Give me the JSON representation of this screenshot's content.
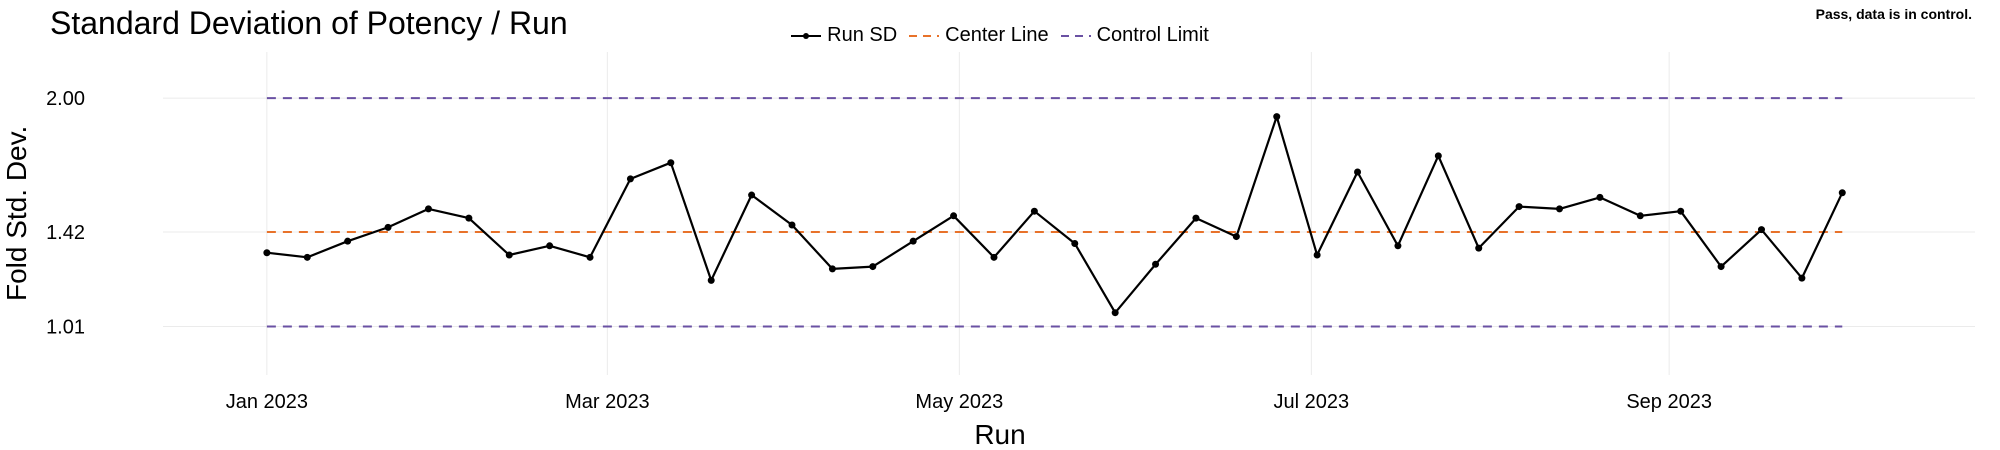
{
  "title": "Standard Deviation of Potency / Run",
  "status_message": "Pass, data is in control.",
  "chart_data": {
    "type": "line",
    "title": "Standard Deviation of Potency / Run",
    "xlabel": "Run",
    "ylabel": "Fold Std. Dev.",
    "x_ticks": [
      {
        "label": "Jan 2023",
        "date": "2023-01-01"
      },
      {
        "label": "Mar 2023",
        "date": "2023-03-01"
      },
      {
        "label": "May 2023",
        "date": "2023-05-01"
      },
      {
        "label": "Jul 2023",
        "date": "2023-07-01"
      },
      {
        "label": "Sep 2023",
        "date": "2023-09-01"
      }
    ],
    "xlim": [
      "2022-12-14",
      "2023-10-24"
    ],
    "y_ticks": [
      {
        "label": "1.01",
        "value": 1.01
      },
      {
        "label": "1.42",
        "value": 1.42
      },
      {
        "label": "2.00",
        "value": 2.0
      }
    ],
    "ylim": [
      0.8,
      2.2
    ],
    "grid": true,
    "legend_position": "top-center",
    "series": [
      {
        "name": "Run SD",
        "color": "#000000",
        "line_style": "solid",
        "markers": true,
        "points": [
          {
            "x": "2023-01-01",
            "y": 1.33
          },
          {
            "x": "2023-01-08",
            "y": 1.31
          },
          {
            "x": "2023-01-15",
            "y": 1.38
          },
          {
            "x": "2023-01-22",
            "y": 1.44
          },
          {
            "x": "2023-01-29",
            "y": 1.52
          },
          {
            "x": "2023-02-05",
            "y": 1.48
          },
          {
            "x": "2023-02-12",
            "y": 1.32
          },
          {
            "x": "2023-02-19",
            "y": 1.36
          },
          {
            "x": "2023-02-26",
            "y": 1.31
          },
          {
            "x": "2023-03-05",
            "y": 1.65
          },
          {
            "x": "2023-03-12",
            "y": 1.72
          },
          {
            "x": "2023-03-19",
            "y": 1.21
          },
          {
            "x": "2023-03-26",
            "y": 1.58
          },
          {
            "x": "2023-04-02",
            "y": 1.45
          },
          {
            "x": "2023-04-09",
            "y": 1.26
          },
          {
            "x": "2023-04-16",
            "y": 1.27
          },
          {
            "x": "2023-04-23",
            "y": 1.38
          },
          {
            "x": "2023-04-30",
            "y": 1.49
          },
          {
            "x": "2023-05-07",
            "y": 1.31
          },
          {
            "x": "2023-05-14",
            "y": 1.51
          },
          {
            "x": "2023-05-21",
            "y": 1.37
          },
          {
            "x": "2023-05-28",
            "y": 1.07
          },
          {
            "x": "2023-06-04",
            "y": 1.28
          },
          {
            "x": "2023-06-11",
            "y": 1.48
          },
          {
            "x": "2023-06-18",
            "y": 1.4
          },
          {
            "x": "2023-06-25",
            "y": 1.92
          },
          {
            "x": "2023-07-02",
            "y": 1.32
          },
          {
            "x": "2023-07-09",
            "y": 1.68
          },
          {
            "x": "2023-07-16",
            "y": 1.36
          },
          {
            "x": "2023-07-23",
            "y": 1.75
          },
          {
            "x": "2023-07-30",
            "y": 1.35
          },
          {
            "x": "2023-08-06",
            "y": 1.53
          },
          {
            "x": "2023-08-13",
            "y": 1.52
          },
          {
            "x": "2023-08-20",
            "y": 1.57
          },
          {
            "x": "2023-08-27",
            "y": 1.49
          },
          {
            "x": "2023-09-03",
            "y": 1.51
          },
          {
            "x": "2023-09-10",
            "y": 1.27
          },
          {
            "x": "2023-09-17",
            "y": 1.43
          },
          {
            "x": "2023-09-24",
            "y": 1.22
          },
          {
            "x": "2023-10-01",
            "y": 1.59
          }
        ]
      },
      {
        "name": "Center Line",
        "color": "#e8722a",
        "line_style": "dashed",
        "points": [
          {
            "x": "2023-01-01",
            "y": 1.42
          },
          {
            "x": "2023-10-01",
            "y": 1.42
          }
        ]
      },
      {
        "name": "Control Limit",
        "color": "#6a51a3",
        "line_style": "dashed",
        "segments": [
          [
            {
              "x": "2023-01-01",
              "y": 2.0
            },
            {
              "x": "2023-10-01",
              "y": 2.0
            }
          ],
          [
            {
              "x": "2023-01-01",
              "y": 1.01
            },
            {
              "x": "2023-10-01",
              "y": 1.01
            }
          ]
        ]
      }
    ]
  }
}
